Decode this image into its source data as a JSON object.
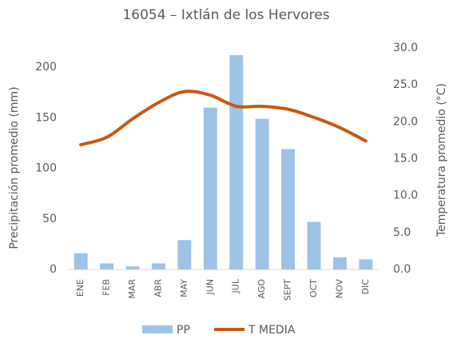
{
  "chart_data": {
    "type": "bar_line",
    "title": "16054 – Ixtlán de los Hervores",
    "y_label": "Precipitación promedio (mm)",
    "y2_label": "Temperatura promedio (°C)",
    "categories": [
      "ENE",
      "FEB",
      "MAR",
      "ABR",
      "MAY",
      "JUN",
      "JUL",
      "AGO",
      "SEPT",
      "OCT",
      "NOV",
      "DIC"
    ],
    "series": [
      {
        "name": "PP",
        "type": "bar",
        "color": "#9dc3e6",
        "values": [
          16,
          6,
          3,
          6,
          29,
          160,
          212,
          149,
          119,
          47,
          12,
          10
        ]
      },
      {
        "name": "T MEDIA",
        "type": "line",
        "axis": "y2",
        "color": "#c55a11",
        "values": [
          16.9,
          17.9,
          20.4,
          22.6,
          24.1,
          23.6,
          22.1,
          22.1,
          21.7,
          20.6,
          19.2,
          17.4
        ]
      }
    ],
    "ylim": [
      0,
      219
    ],
    "yticks": [
      0,
      50,
      100,
      150,
      200
    ],
    "y2lim": [
      0,
      30
    ],
    "y2ticks": [
      {
        "value": 0,
        "label": "0.0"
      },
      {
        "value": 5,
        "label": "5.0"
      },
      {
        "value": 10,
        "label": "10.0"
      },
      {
        "value": 15,
        "label": "15.0"
      },
      {
        "value": 20,
        "label": "20.0"
      },
      {
        "value": 25,
        "label": "25.0"
      },
      {
        "value": 30,
        "label": "30.0"
      }
    ],
    "legend": "bottom"
  }
}
